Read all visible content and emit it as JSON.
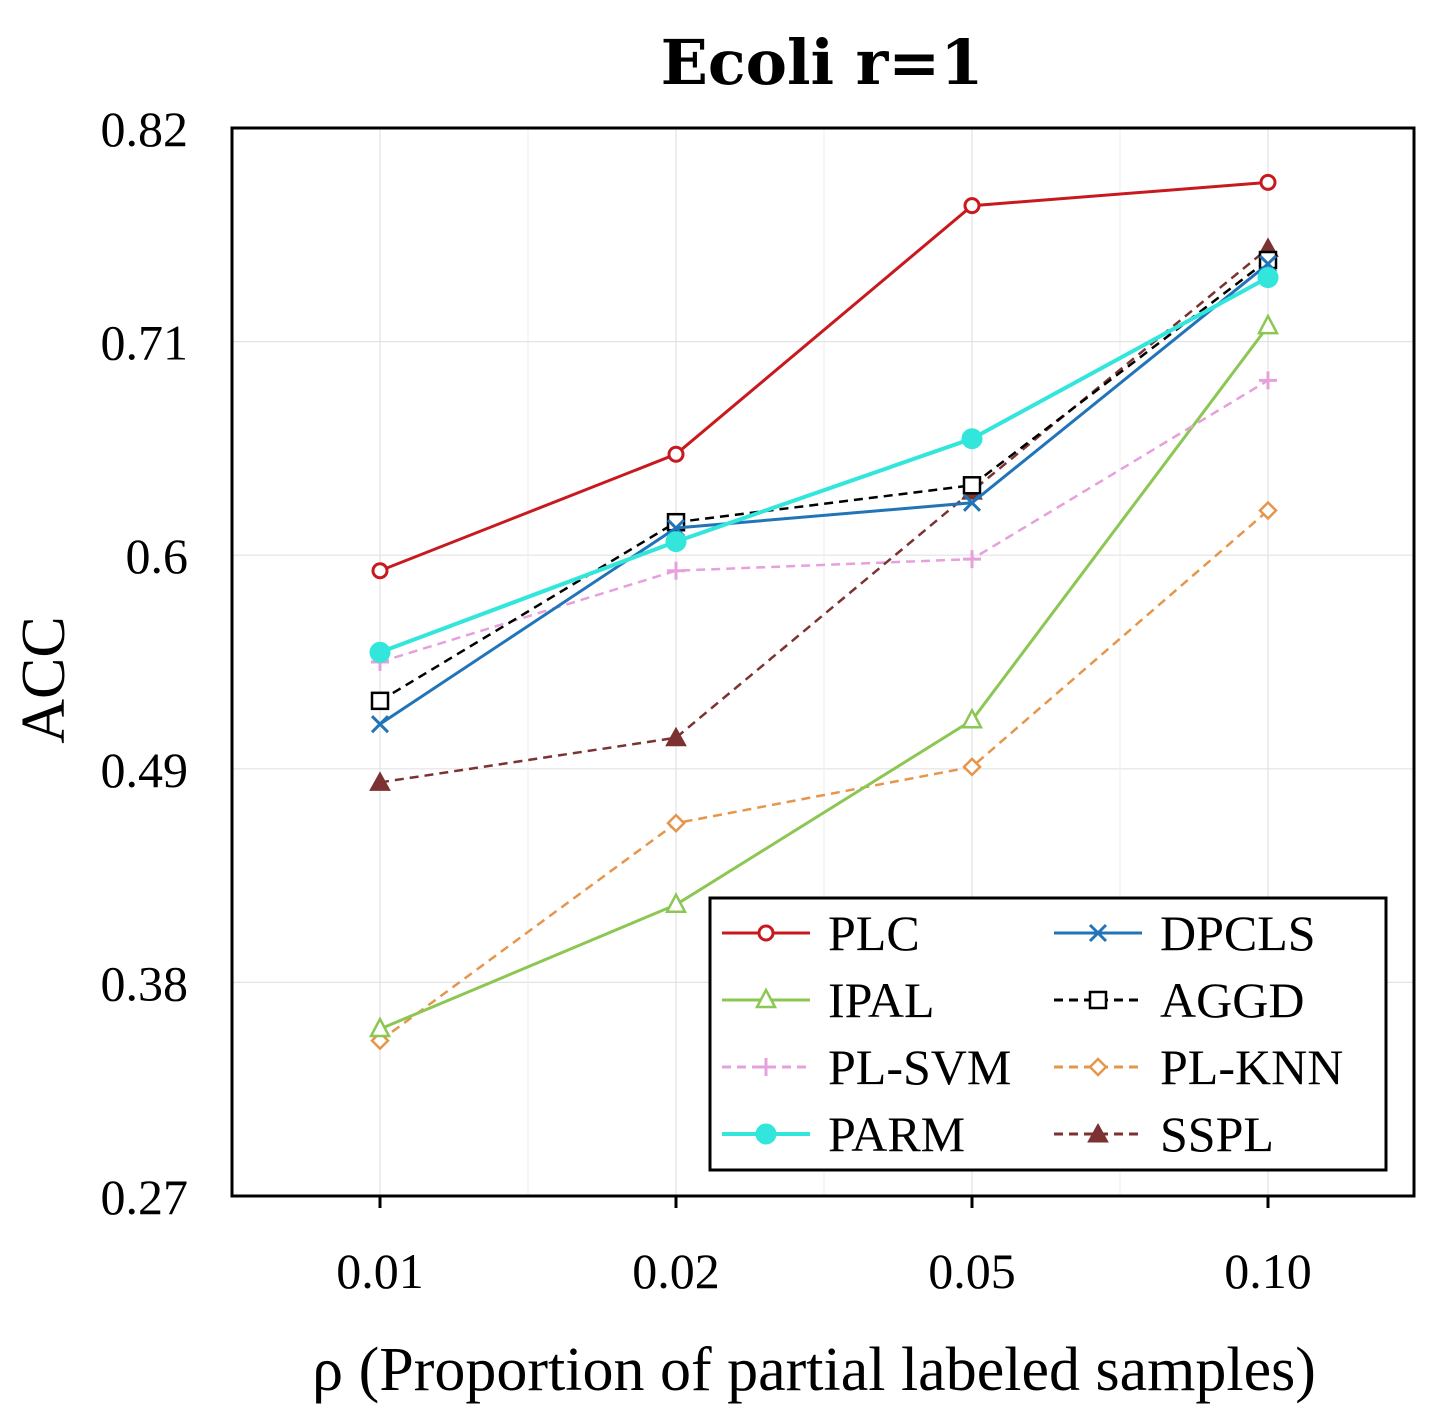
{
  "chart_data": {
    "type": "line",
    "title": "Ecoli r=1",
    "xlabel": "ρ (Proportion of partial labeled samples)",
    "ylabel": "ACC",
    "categories": [
      "0.01",
      "0.02",
      "0.05",
      "0.10"
    ],
    "ylim": [
      0.27,
      0.82
    ],
    "yticks": [
      "0.82",
      "0.71",
      "0.6",
      "0.49",
      "0.38",
      "0.27"
    ],
    "legend_position": "bottom-right",
    "series": [
      {
        "name": "PLC",
        "values": [
          0.592,
          0.652,
          0.78,
          0.792
        ],
        "color": "#c8191e",
        "dash": false,
        "marker": "circle-open"
      },
      {
        "name": "DPCLS",
        "values": [
          0.513,
          0.614,
          0.627,
          0.75
        ],
        "color": "#2274b8",
        "dash": false,
        "marker": "x"
      },
      {
        "name": "IPAL",
        "values": [
          0.356,
          0.42,
          0.515,
          0.718
        ],
        "color": "#8cc653",
        "dash": false,
        "marker": "triangle-open"
      },
      {
        "name": "AGGD",
        "values": [
          0.525,
          0.617,
          0.636,
          0.752
        ],
        "color": "#000000",
        "dash": true,
        "marker": "square-open"
      },
      {
        "name": "PL-SVM",
        "values": [
          0.545,
          0.592,
          0.598,
          0.69
        ],
        "color": "#e6a0dc",
        "dash": true,
        "marker": "plus"
      },
      {
        "name": "PL-KNN",
        "values": [
          0.35,
          0.462,
          0.491,
          0.623
        ],
        "color": "#e6964b",
        "dash": true,
        "marker": "diamond-open"
      },
      {
        "name": "PARM",
        "values": [
          0.55,
          0.607,
          0.66,
          0.743
        ],
        "color": "#32e6dc",
        "dash": false,
        "marker": "circle-filled"
      },
      {
        "name": "SSPL",
        "values": [
          0.483,
          0.506,
          0.633,
          0.758
        ],
        "color": "#7d3232",
        "dash": true,
        "marker": "triangle-filled"
      }
    ]
  }
}
